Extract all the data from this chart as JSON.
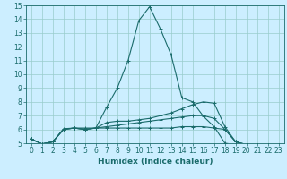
{
  "xlabel": "Humidex (Indice chaleur)",
  "background_color": "#cceeff",
  "line_color": "#1a6b6b",
  "grid_color": "#99cccc",
  "xmin": -0.5,
  "xmax": 23.5,
  "ymin": 5,
  "ymax": 15,
  "tick_fontsize": 5.5,
  "label_fontsize": 6.5,
  "line1_x": [
    0,
    1,
    2,
    3,
    4,
    5,
    6,
    7,
    8,
    9,
    10,
    11,
    12,
    13,
    14,
    15,
    16,
    17,
    18,
    19,
    20,
    21,
    22,
    23
  ],
  "line1_y": [
    5.3,
    4.95,
    5.1,
    6.05,
    6.1,
    6.1,
    6.1,
    7.6,
    9.0,
    11.0,
    13.9,
    14.9,
    13.3,
    11.4,
    8.3,
    8.0,
    6.95,
    6.2,
    5.0,
    4.9,
    4.9,
    4.9,
    4.9,
    4.9
  ],
  "line2_x": [
    0,
    1,
    2,
    3,
    4,
    5,
    6,
    7,
    8,
    9,
    10,
    11,
    12,
    13,
    14,
    15,
    16,
    17,
    18,
    19,
    20,
    21,
    22,
    23
  ],
  "line2_y": [
    5.3,
    4.95,
    5.1,
    6.0,
    6.1,
    6.0,
    6.1,
    6.5,
    6.6,
    6.6,
    6.7,
    6.8,
    7.0,
    7.2,
    7.5,
    7.8,
    8.0,
    7.9,
    6.2,
    5.1,
    4.9,
    4.9,
    4.9,
    4.9
  ],
  "line3_x": [
    0,
    1,
    2,
    3,
    4,
    5,
    6,
    7,
    8,
    9,
    10,
    11,
    12,
    13,
    14,
    15,
    16,
    17,
    18,
    19,
    20,
    21,
    22,
    23
  ],
  "line3_y": [
    5.3,
    4.95,
    5.1,
    6.0,
    6.1,
    6.0,
    6.1,
    6.2,
    6.3,
    6.4,
    6.5,
    6.6,
    6.7,
    6.8,
    6.9,
    7.0,
    7.0,
    6.8,
    6.0,
    5.1,
    4.9,
    4.9,
    4.9,
    4.9
  ],
  "line4_x": [
    0,
    1,
    2,
    3,
    4,
    5,
    6,
    7,
    8,
    9,
    10,
    11,
    12,
    13,
    14,
    15,
    16,
    17,
    18,
    19,
    20,
    21,
    22,
    23
  ],
  "line4_y": [
    5.3,
    4.95,
    5.1,
    6.0,
    6.1,
    6.0,
    6.1,
    6.1,
    6.1,
    6.1,
    6.1,
    6.1,
    6.1,
    6.1,
    6.2,
    6.2,
    6.2,
    6.1,
    6.0,
    5.1,
    4.9,
    4.9,
    4.9,
    4.9
  ]
}
